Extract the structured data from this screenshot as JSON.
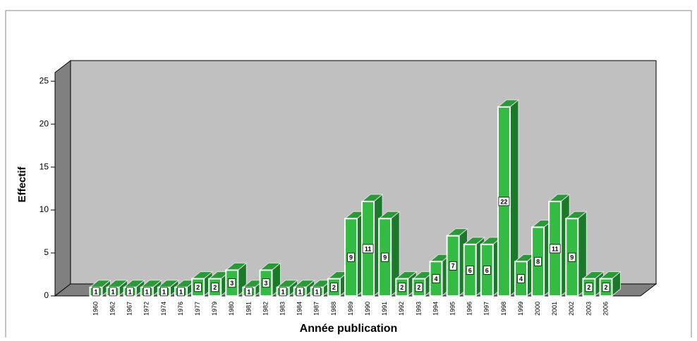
{
  "chart_data": {
    "type": "bar3d",
    "x_label": "Année publication",
    "y_label": "Effectif",
    "categories": [
      "1960",
      "1962",
      "1967",
      "1972",
      "1974",
      "1976",
      "1977",
      "1979",
      "1980",
      "1981",
      "1982",
      "1983",
      "1984",
      "1987",
      "1988",
      "1989",
      "1990",
      "1991",
      "1992",
      "1993",
      "1994",
      "1995",
      "1996",
      "1997",
      "1998",
      "1999",
      "2000",
      "2001",
      "2002",
      "2003",
      "2006"
    ],
    "values": [
      1,
      1,
      1,
      1,
      1,
      1,
      2,
      2,
      3,
      1,
      3,
      1,
      1,
      1,
      2,
      9,
      11,
      9,
      2,
      2,
      4,
      7,
      6,
      6,
      22,
      4,
      8,
      11,
      9,
      2,
      2
    ],
    "color": "#33bb44",
    "ylim": [
      0,
      26
    ],
    "yticks": [
      0,
      5,
      10,
      15,
      20,
      25
    ],
    "grid": false
  }
}
